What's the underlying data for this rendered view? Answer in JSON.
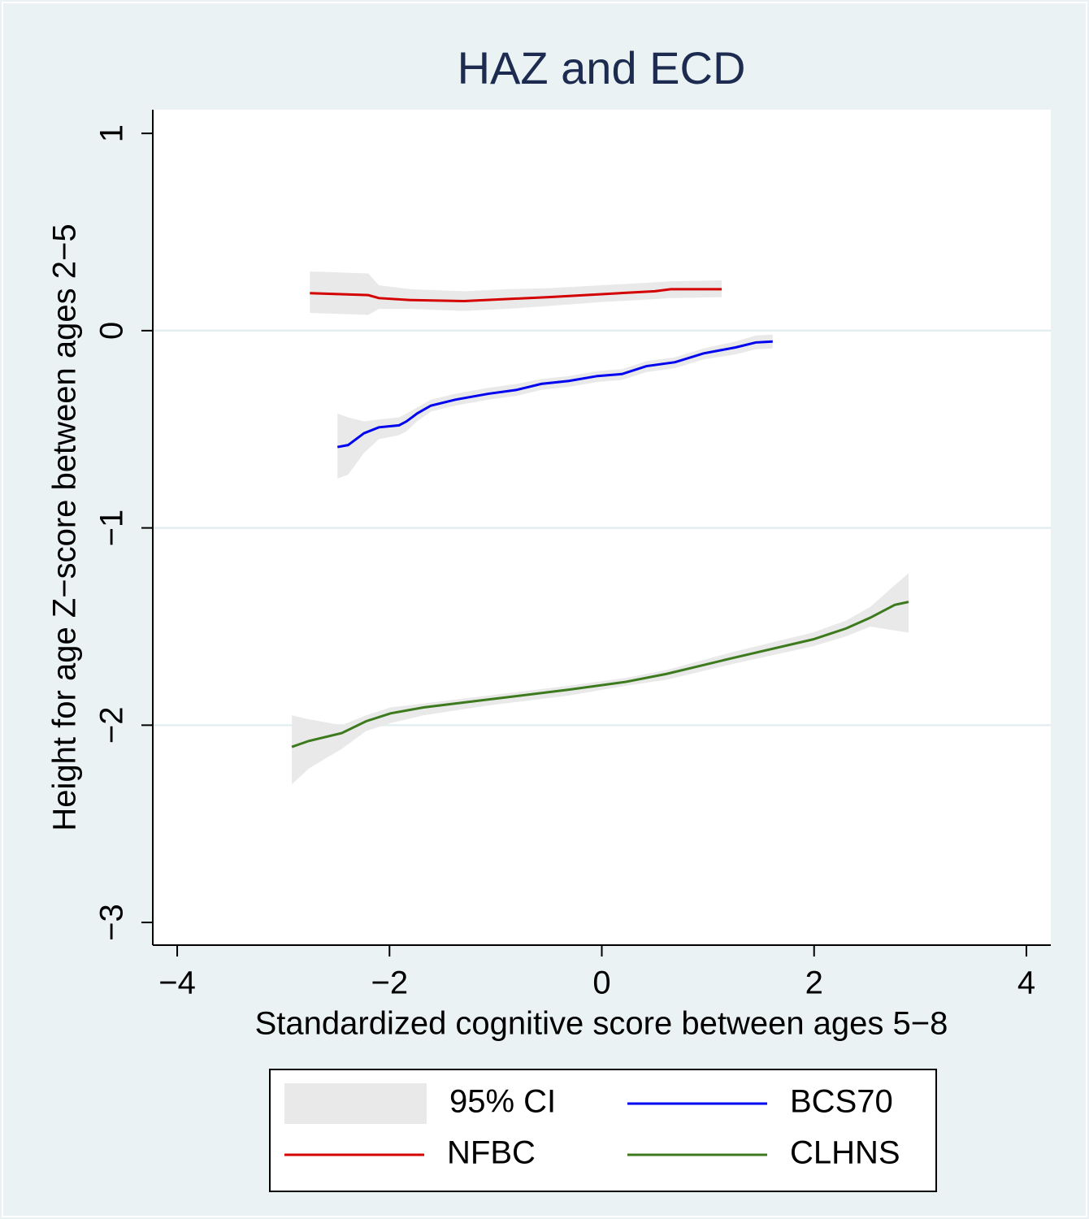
{
  "chart_data": {
    "type": "line",
    "title": "HAZ and ECD",
    "x_label": "Standardized cognitive score between ages 5−8",
    "y_label": "Height for age Z−score between ages 2−5",
    "xlim": [
      -4.23,
      4.23
    ],
    "ylim": [
      -3.115,
      1.12
    ],
    "xticks": [
      {
        "value": -4,
        "label": "−4"
      },
      {
        "value": -2,
        "label": "−2"
      },
      0,
      2,
      4
    ],
    "yticks": [
      {
        "value": -3,
        "label": "−3"
      },
      {
        "value": -2,
        "label": "−2"
      },
      {
        "value": -1,
        "label": "−1"
      },
      0,
      1
    ],
    "grid": true,
    "legend_position": "bottom",
    "ci_label": "95% CI",
    "ci_color": "#e9e9e9",
    "series": [
      {
        "name": "NFBC",
        "color": "#d40000",
        "x": [
          -2.75,
          -2.2,
          -2.1,
          -1.8,
          -1.3,
          -0.9,
          -0.5,
          0,
          0.5,
          0.65,
          1.13
        ],
        "values": [
          0.19,
          0.18,
          0.165,
          0.155,
          0.15,
          0.16,
          0.17,
          0.185,
          0.2,
          0.21,
          0.21
        ],
        "ci_upper": [
          0.3,
          0.29,
          0.23,
          0.21,
          0.2,
          0.21,
          0.215,
          0.23,
          0.245,
          0.25,
          0.255
        ],
        "ci_lower": [
          0.09,
          0.08,
          0.11,
          0.11,
          0.1,
          0.11,
          0.125,
          0.145,
          0.16,
          0.165,
          0.17
        ]
      },
      {
        "name": "BCS70",
        "color": "#0000f0",
        "x": [
          -2.49,
          -2.39,
          -2.24,
          -2.1,
          -1.91,
          -1.84,
          -1.74,
          -1.61,
          -1.38,
          -1.07,
          -0.8,
          -0.57,
          -0.31,
          -0.04,
          0.19,
          0.42,
          0.69,
          0.96,
          1.26,
          1.45,
          1.61
        ],
        "values": [
          -0.59,
          -0.58,
          -0.52,
          -0.49,
          -0.48,
          -0.46,
          -0.42,
          -0.38,
          -0.35,
          -0.32,
          -0.3,
          -0.27,
          -0.255,
          -0.23,
          -0.22,
          -0.18,
          -0.16,
          -0.115,
          -0.085,
          -0.06,
          -0.055
        ],
        "ci_upper": [
          -0.42,
          -0.44,
          -0.46,
          -0.45,
          -0.44,
          -0.42,
          -0.39,
          -0.35,
          -0.32,
          -0.29,
          -0.27,
          -0.245,
          -0.23,
          -0.205,
          -0.195,
          -0.155,
          -0.135,
          -0.09,
          -0.055,
          -0.025,
          -0.02
        ],
        "ci_lower": [
          -0.75,
          -0.73,
          -0.62,
          -0.55,
          -0.53,
          -0.51,
          -0.46,
          -0.41,
          -0.38,
          -0.35,
          -0.33,
          -0.3,
          -0.285,
          -0.26,
          -0.25,
          -0.21,
          -0.19,
          -0.145,
          -0.12,
          -0.095,
          -0.09
        ]
      },
      {
        "name": "CLHNS",
        "color": "#3d7a1e",
        "x": [
          -2.92,
          -2.76,
          -2.45,
          -2.22,
          -1.99,
          -1.68,
          -1.07,
          -0.31,
          0.23,
          0.61,
          1.23,
          1.99,
          2.3,
          2.53,
          2.76,
          2.89
        ],
        "values": [
          -2.11,
          -2.08,
          -2.04,
          -1.98,
          -1.94,
          -1.91,
          -1.87,
          -1.82,
          -1.78,
          -1.74,
          -1.66,
          -1.565,
          -1.51,
          -1.455,
          -1.39,
          -1.375
        ],
        "ci_upper": [
          -1.95,
          -1.97,
          -2.0,
          -1.95,
          -1.91,
          -1.89,
          -1.85,
          -1.8,
          -1.76,
          -1.72,
          -1.63,
          -1.53,
          -1.47,
          -1.4,
          -1.29,
          -1.23
        ],
        "ci_lower": [
          -2.3,
          -2.22,
          -2.12,
          -2.03,
          -1.99,
          -1.95,
          -1.9,
          -1.85,
          -1.8,
          -1.77,
          -1.69,
          -1.6,
          -1.55,
          -1.5,
          -1.52,
          -1.53
        ]
      }
    ]
  }
}
